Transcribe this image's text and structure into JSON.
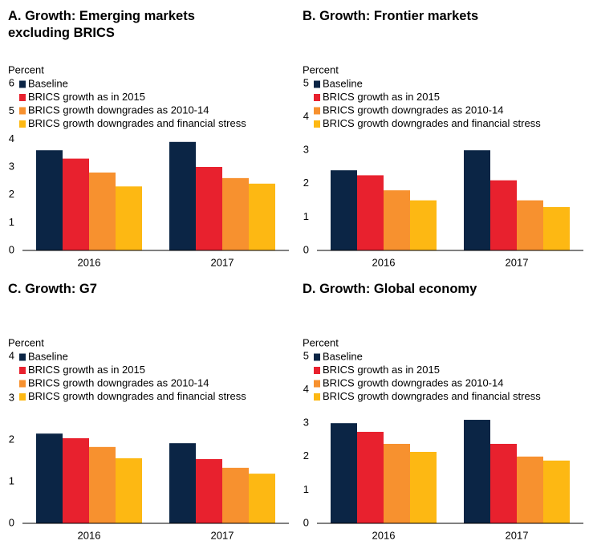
{
  "chart_data": [
    {
      "type": "bar",
      "title": "A. Growth: Emerging markets excluding BRICS",
      "y_label": "Percent",
      "categories": [
        "2016",
        "2017"
      ],
      "series": [
        {
          "name": "Baseline",
          "color": "#0b2545",
          "values": [
            3.6,
            3.9
          ]
        },
        {
          "name": "BRICS growth as in 2015",
          "color": "#e8212e",
          "values": [
            3.3,
            3.0
          ]
        },
        {
          "name": "BRICS growth downgrades as 2010-14",
          "color": "#f7912f",
          "values": [
            2.8,
            2.6
          ]
        },
        {
          "name": "BRICS growth downgrades and financial stress",
          "color": "#fdb813",
          "values": [
            2.3,
            2.4
          ]
        }
      ],
      "ylim": [
        0,
        6
      ],
      "yticks": [
        0,
        1,
        2,
        3,
        4,
        5,
        6
      ]
    },
    {
      "type": "bar",
      "title": "B. Growth: Frontier markets",
      "y_label": "Percent",
      "categories": [
        "2016",
        "2017"
      ],
      "series": [
        {
          "name": "Baseline",
          "color": "#0b2545",
          "values": [
            2.4,
            3.0
          ]
        },
        {
          "name": "BRICS growth as in 2015",
          "color": "#e8212e",
          "values": [
            2.25,
            2.1
          ]
        },
        {
          "name": "BRICS growth downgrades as 2010-14",
          "color": "#f7912f",
          "values": [
            1.8,
            1.5
          ]
        },
        {
          "name": "BRICS growth downgrades and financial stress",
          "color": "#fdb813",
          "values": [
            1.5,
            1.3
          ]
        }
      ],
      "ylim": [
        0,
        5
      ],
      "yticks": [
        0,
        1,
        2,
        3,
        4,
        5
      ]
    },
    {
      "type": "bar",
      "title": "C. Growth: G7",
      "y_label": "Percent",
      "categories": [
        "2016",
        "2017"
      ],
      "series": [
        {
          "name": "Baseline",
          "color": "#0b2545",
          "values": [
            2.15,
            1.92
          ]
        },
        {
          "name": "BRICS growth as in 2015",
          "color": "#e8212e",
          "values": [
            2.04,
            1.54
          ]
        },
        {
          "name": "BRICS growth downgrades as 2010-14",
          "color": "#f7912f",
          "values": [
            1.83,
            1.33
          ]
        },
        {
          "name": "BRICS growth downgrades and financial stress",
          "color": "#fdb813",
          "values": [
            1.56,
            1.19
          ]
        }
      ],
      "ylim": [
        0,
        4
      ],
      "yticks": [
        0,
        1,
        2,
        3,
        4
      ]
    },
    {
      "type": "bar",
      "title": "D. Growth: Global economy",
      "y_label": "Percent",
      "categories": [
        "2016",
        "2017"
      ],
      "series": [
        {
          "name": "Baseline",
          "color": "#0b2545",
          "values": [
            3.0,
            3.1
          ]
        },
        {
          "name": "BRICS growth as in 2015",
          "color": "#e8212e",
          "values": [
            2.74,
            2.38
          ]
        },
        {
          "name": "BRICS growth downgrades as 2010-14",
          "color": "#f7912f",
          "values": [
            2.38,
            2.0
          ]
        },
        {
          "name": "BRICS growth downgrades and financial stress",
          "color": "#fdb813",
          "values": [
            2.14,
            1.88
          ]
        }
      ],
      "ylim": [
        0,
        5
      ],
      "yticks": [
        0,
        1,
        2,
        3,
        4,
        5
      ]
    }
  ]
}
